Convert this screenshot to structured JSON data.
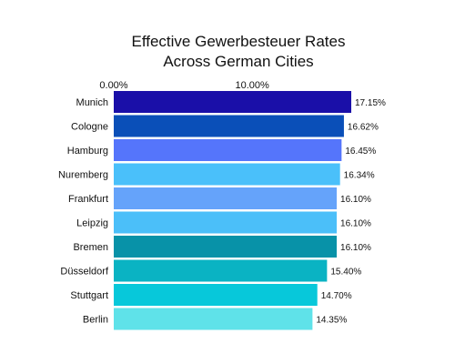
{
  "chart_data": {
    "type": "bar",
    "orientation": "horizontal",
    "title_lines": [
      "Effective Gewerbesteuer Rates",
      "Across German Cities"
    ],
    "x_ticks": [
      "0.00%",
      "10.00%"
    ],
    "xlim": [
      0,
      17.15
    ],
    "grid": false,
    "categories": [
      "Munich",
      "Cologne",
      "Hamburg",
      "Nuremberg",
      "Frankfurt",
      "Leipzig",
      "Bremen",
      "Düsseldorf",
      "Stuttgart",
      "Berlin"
    ],
    "values": [
      17.15,
      16.62,
      16.45,
      16.34,
      16.1,
      16.1,
      16.1,
      15.4,
      14.7,
      14.35
    ],
    "value_labels": [
      "17.15%",
      "16.62%",
      "16.45%",
      "16.34%",
      "16.10%",
      "16.10%",
      "16.10%",
      "15.40%",
      "14.70%",
      "14.35%"
    ],
    "colors": [
      "#1a0fa8",
      "#0a4fb8",
      "#5575fb",
      "#4ac0fa",
      "#65a3fa",
      "#4bbff9",
      "#0892a8",
      "#0ab3c3",
      "#07c8da",
      "#5fe2e9"
    ]
  }
}
